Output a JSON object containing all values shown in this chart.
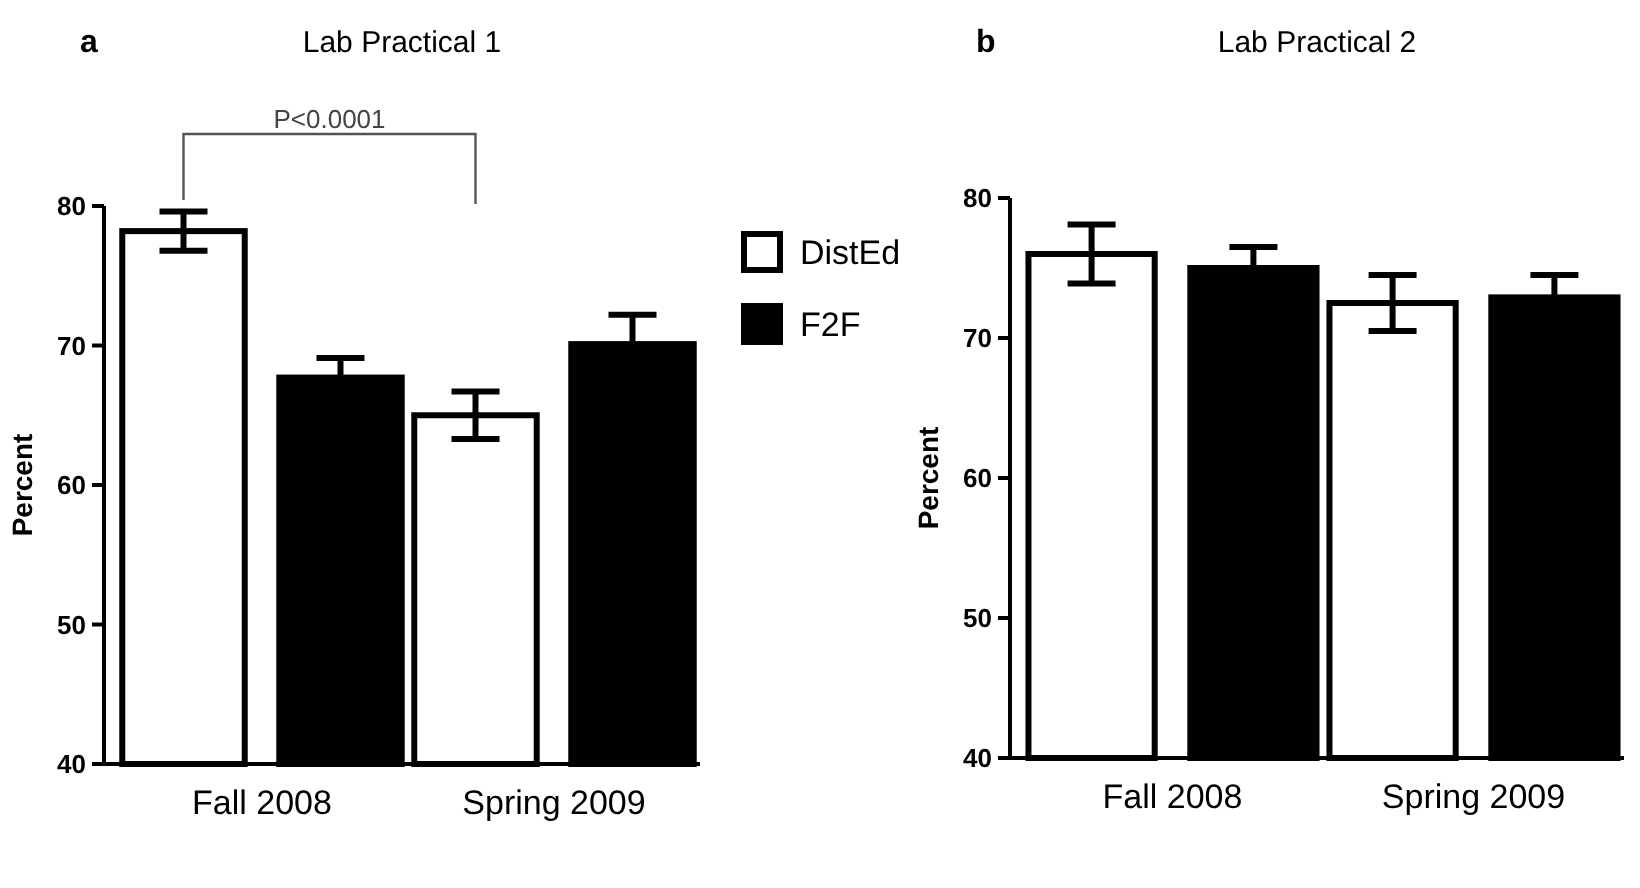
{
  "chart_data": [
    {
      "type": "bar",
      "title": "Lab Practical 1",
      "ylabel": "Percent",
      "categories": [
        "Fall 2008",
        "Spring 2009"
      ],
      "series": [
        {
          "name": "DistEd",
          "color": "#ffffff",
          "values": [
            78.2,
            65.0
          ],
          "errors": [
            1.4,
            1.7
          ]
        },
        {
          "name": "F2F",
          "color": "#000000",
          "values": [
            67.7,
            70.1
          ],
          "errors": [
            1.4,
            2.1
          ]
        }
      ],
      "ylim": [
        40,
        80
      ],
      "yticks": [
        40,
        50,
        60,
        70,
        80
      ],
      "legend": "right",
      "annotations": [
        "a",
        "P<0.0001"
      ]
    },
    {
      "type": "bar",
      "title": "Lab Practical 2",
      "ylabel": "Percent",
      "categories": [
        "Fall 2008",
        "Spring 2009"
      ],
      "series": [
        {
          "color": "#ffffff",
          "values": [
            76.0,
            72.5
          ],
          "errors": [
            2.1,
            2.0
          ]
        },
        {
          "color": "#000000",
          "values": [
            75.0,
            72.9
          ],
          "errors": [
            1.5,
            1.6
          ]
        }
      ],
      "ylim": [
        40,
        80
      ],
      "yticks": [
        40,
        50,
        60,
        70,
        80
      ],
      "annotations": [
        "b"
      ]
    }
  ]
}
